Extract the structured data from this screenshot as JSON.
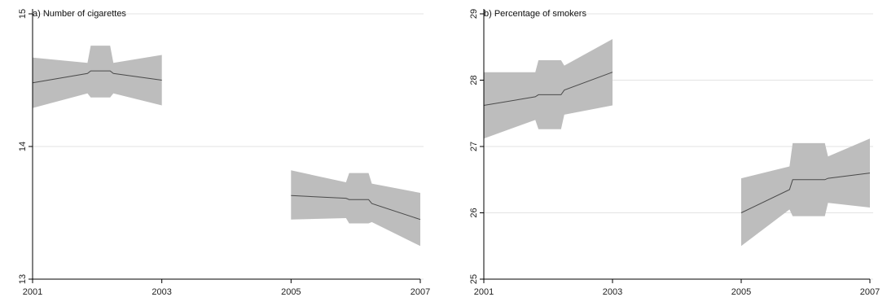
{
  "chart_data": [
    {
      "type": "line",
      "title": "a) Number of cigarettes",
      "xlabel": "",
      "ylabel": "",
      "xlim": [
        2001,
        2007
      ],
      "ylim": [
        13,
        15
      ],
      "x_ticks": [
        "2001",
        "2003",
        "2005",
        "2007"
      ],
      "y_ticks": [
        "13",
        "14",
        "15"
      ],
      "grid": "horizontal",
      "colors": {
        "band": "#bdbdbd",
        "line": "#4a4a4a",
        "grid": "#e3e3e3",
        "axis": "#000000"
      },
      "series": [
        {
          "segment": "2001-2003",
          "x": [
            2001,
            2001.85,
            2001.9,
            2002.2,
            2002.25,
            2003
          ],
          "y": [
            14.48,
            14.55,
            14.57,
            14.57,
            14.55,
            14.5
          ],
          "upper": [
            14.67,
            14.63,
            14.76,
            14.76,
            14.63,
            14.69
          ],
          "lower": [
            14.29,
            14.4,
            14.37,
            14.37,
            14.4,
            14.31
          ]
        },
        {
          "segment": "2005-2007",
          "x": [
            2005,
            2005.85,
            2005.9,
            2006.2,
            2006.25,
            2007
          ],
          "y": [
            13.63,
            13.61,
            13.6,
            13.6,
            13.57,
            13.45
          ],
          "upper": [
            13.82,
            13.73,
            13.8,
            13.8,
            13.72,
            13.65
          ],
          "lower": [
            13.45,
            13.46,
            13.42,
            13.42,
            13.43,
            13.25
          ]
        }
      ]
    },
    {
      "type": "line",
      "title": "b) Percentage of smokers",
      "xlabel": "",
      "ylabel": "",
      "xlim": [
        2001,
        2007
      ],
      "ylim": [
        25,
        29
      ],
      "x_ticks": [
        "2001",
        "2003",
        "2005",
        "2007"
      ],
      "y_ticks": [
        "25",
        "26",
        "27",
        "28",
        "29"
      ],
      "grid": "horizontal",
      "colors": {
        "band": "#bdbdbd",
        "line": "#4a4a4a",
        "grid": "#e3e3e3",
        "axis": "#000000"
      },
      "series": [
        {
          "segment": "2001-2003",
          "x": [
            2001,
            2001.8,
            2001.85,
            2002.2,
            2002.25,
            2003
          ],
          "y": [
            27.62,
            27.75,
            27.78,
            27.78,
            27.85,
            28.12
          ],
          "upper": [
            28.12,
            28.12,
            28.3,
            28.3,
            28.22,
            28.62
          ],
          "lower": [
            27.12,
            27.4,
            27.26,
            27.26,
            27.48,
            27.62
          ]
        },
        {
          "segment": "2005-2007",
          "x": [
            2005,
            2005.75,
            2005.8,
            2006.3,
            2006.35,
            2007
          ],
          "y": [
            26.0,
            26.35,
            26.5,
            26.5,
            26.52,
            26.6
          ],
          "upper": [
            26.52,
            26.7,
            27.05,
            27.05,
            26.85,
            27.12
          ],
          "lower": [
            25.5,
            26.05,
            25.95,
            25.95,
            26.15,
            26.08
          ]
        }
      ]
    }
  ]
}
